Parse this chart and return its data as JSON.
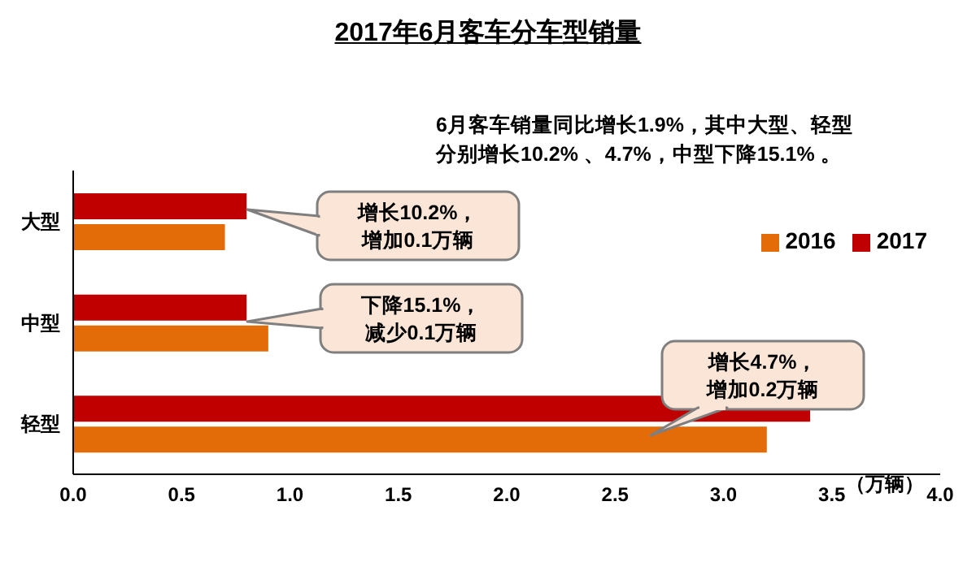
{
  "chart_data": {
    "type": "bar",
    "orientation": "horizontal",
    "title": "2017年6月客车分车型销量",
    "subtitle": "6月客车销量同比增长1.9%，其中大型、轻型分别增长10.2% 、4.7%，中型下降15.1% 。",
    "xlabel": "（万辆）",
    "categories": [
      "大型",
      "中型",
      "轻型"
    ],
    "series": [
      {
        "name": "2017",
        "color": "#c00000",
        "values": [
          0.8,
          0.8,
          3.4
        ]
      },
      {
        "name": "2016",
        "color": "#e36c09",
        "values": [
          0.7,
          0.9,
          3.2
        ]
      }
    ],
    "xlim": [
      0,
      4
    ],
    "xticks": [
      {
        "value": 0,
        "label": "0.0"
      },
      {
        "value": 0.5,
        "label": "0.5"
      },
      {
        "value": 1,
        "label": "1.0"
      },
      {
        "value": 1.5,
        "label": "1.5"
      },
      {
        "value": 2,
        "label": "2.0"
      },
      {
        "value": 2.5,
        "label": "2.5"
      },
      {
        "value": 3,
        "label": "3.0"
      },
      {
        "value": 3.5,
        "label": "3.5"
      },
      {
        "value": 4,
        "label": "4.0"
      }
    ],
    "grid": false,
    "legend": "right",
    "annotations": [
      "增长10.2%，增加0.1万辆",
      "下降15.1%，减少0.1万辆",
      "增长4.7%，增加0.2万辆"
    ]
  }
}
